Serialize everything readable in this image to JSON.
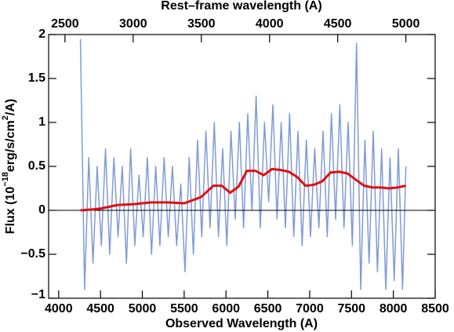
{
  "chart_data": {
    "type": "line",
    "xlabel": "Observed Wavelength (A)",
    "x2label": "Rest–frame wavelength (A)",
    "ylabel": {
      "prefix": "Flux (10",
      "exp1": "−18",
      "mid": "erg/s/cm",
      "exp2": "2",
      "suffix": "/A)"
    },
    "xlim": [
      3880,
      8500
    ],
    "xticks": [
      4000,
      4500,
      5000,
      5500,
      6000,
      6500,
      7000,
      7500,
      8000,
      8500
    ],
    "x2lim": [
      2380,
      5215
    ],
    "x2ticks": [
      2500,
      3000,
      3500,
      4000,
      4500,
      5000
    ],
    "ylim": [
      -1,
      2
    ],
    "yticks": [
      {
        "value": -1,
        "label": "−1"
      },
      {
        "value": -0.5,
        "label": "−0.5"
      },
      0,
      0.5,
      1,
      1.5,
      2
    ],
    "zero_line": 0,
    "series": [
      {
        "color": "#7f9bd6",
        "width": 1.5,
        "x": [
          4260,
          4310,
          4360,
          4410,
          4460,
          4510,
          4560,
          4610,
          4660,
          4710,
          4760,
          4810,
          4860,
          4910,
          4960,
          5010,
          5060,
          5110,
          5160,
          5210,
          5260,
          5310,
          5360,
          5410,
          5460,
          5510,
          5560,
          5610,
          5660,
          5710,
          5760,
          5810,
          5860,
          5910,
          5960,
          6010,
          6060,
          6110,
          6160,
          6210,
          6260,
          6310,
          6360,
          6410,
          6460,
          6510,
          6560,
          6610,
          6660,
          6710,
          6760,
          6810,
          6860,
          6910,
          6960,
          7010,
          7060,
          7110,
          7160,
          7210,
          7260,
          7310,
          7360,
          7410,
          7460,
          7510,
          7560,
          7610,
          7660,
          7710,
          7760,
          7810,
          7860,
          7910,
          7960,
          8010,
          8060,
          8110,
          8150
        ],
        "values": [
          1.95,
          -0.9,
          0.6,
          -0.6,
          0.5,
          -0.4,
          0.7,
          -0.5,
          0.6,
          -0.3,
          0.5,
          -0.6,
          0.7,
          -0.4,
          0.4,
          -0.3,
          0.6,
          -0.5,
          0.5,
          -0.4,
          0.6,
          -0.3,
          0.5,
          -0.4,
          0.3,
          -0.7,
          0.6,
          -0.5,
          0.8,
          -0.3,
          0.9,
          -0.2,
          1.0,
          -0.3,
          0.7,
          -0.4,
          0.9,
          -0.1,
          1.0,
          -0.2,
          1.1,
          0.0,
          1.3,
          -0.2,
          1.0,
          0.1,
          1.2,
          -0.1,
          1.0,
          -0.2,
          1.1,
          -0.3,
          0.9,
          -0.4,
          0.8,
          -0.3,
          0.7,
          -0.2,
          0.9,
          -0.3,
          1.1,
          -0.1,
          1.2,
          -0.2,
          1.0,
          -0.4,
          1.9,
          -0.9,
          0.8,
          -0.6,
          0.9,
          -0.7,
          0.7,
          -0.9,
          0.6,
          -0.8,
          0.7,
          -0.9,
          0.5
        ]
      },
      {
        "color": "#e01010",
        "width": 3,
        "x": [
          4260,
          4400,
          4500,
          4700,
          4900,
          5100,
          5300,
          5500,
          5700,
          5850,
          5950,
          6050,
          6150,
          6250,
          6350,
          6450,
          6550,
          6650,
          6750,
          6850,
          6950,
          7050,
          7150,
          7250,
          7350,
          7450,
          7550,
          7650,
          7750,
          7850,
          7950,
          8050,
          8150
        ],
        "values": [
          0,
          0.01,
          0.02,
          0.06,
          0.07,
          0.09,
          0.09,
          0.08,
          0.15,
          0.28,
          0.28,
          0.2,
          0.27,
          0.45,
          0.45,
          0.4,
          0.47,
          0.46,
          0.44,
          0.38,
          0.28,
          0.29,
          0.33,
          0.43,
          0.44,
          0.42,
          0.35,
          0.28,
          0.26,
          0.26,
          0.25,
          0.26,
          0.28
        ]
      }
    ]
  }
}
